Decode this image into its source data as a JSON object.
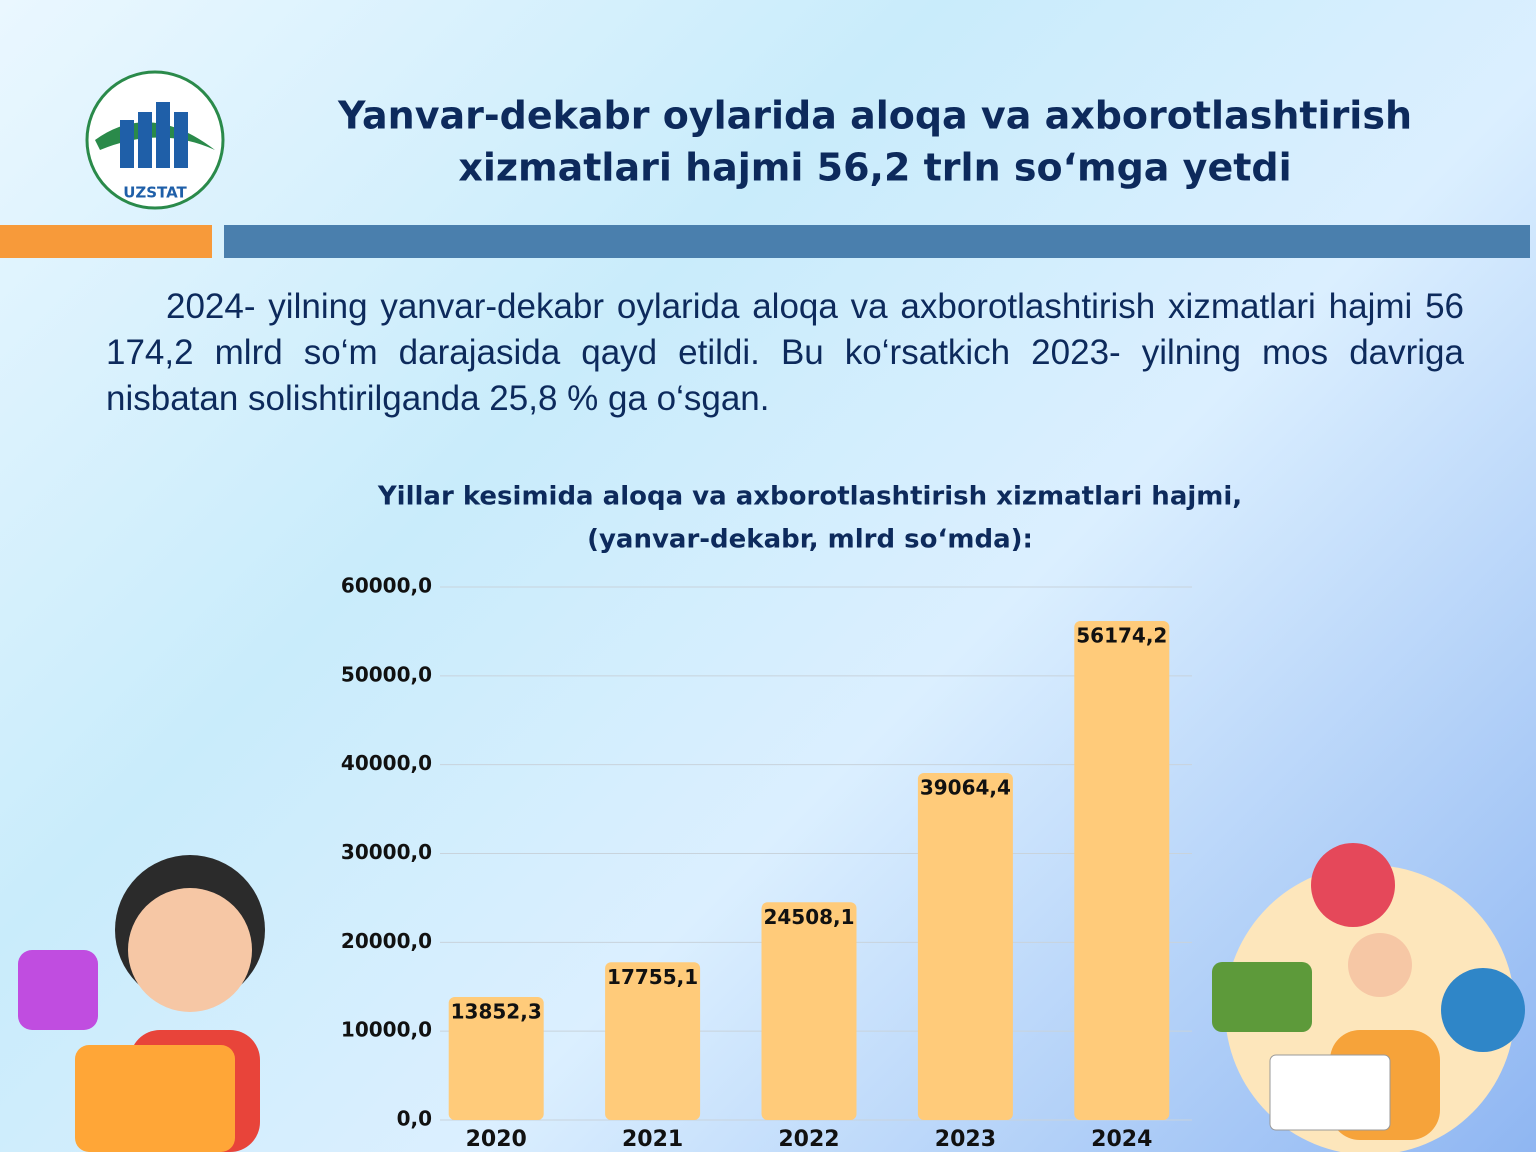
{
  "header": {
    "logo_text": "UZSTAT",
    "title_lines": [
      "Yanvar-dekabr oylarida aloqa va axborotlashtirish",
      "xizmatlari hajmi 56,2 trln so‘mga yetdi"
    ]
  },
  "paragraph": "2024- yilning yanvar-dekabr oylarida aloqa va axborotlashtirish xizmatlari hajmi 56 174,2 mlrd so‘m darajasida qayd etildi. Bu ko‘rsatkich 2023- yilning mos davriga nisbatan solishtirilganda 25,8 % ga o‘sgan.",
  "chart_data": {
    "type": "bar",
    "title": "Yillar kesimida aloqa va axborotlashtirish xizmatlari hajmi,",
    "subtitle": "(yanvar-dekabr, mlrd so‘mda):",
    "categories": [
      "2020",
      "2021",
      "2022",
      "2023",
      "2024"
    ],
    "values": [
      13852.3,
      17755.1,
      24508.1,
      39064.4,
      56174.2
    ],
    "value_labels": [
      "13852,3",
      "17755,1",
      "24508,1",
      "39064,4",
      "56174,2"
    ],
    "color": "#ffcb7a",
    "ylim": [
      0,
      60000
    ],
    "yticks": [
      {
        "value": 0,
        "label": "0,0"
      },
      {
        "value": 10000,
        "label": "10000,0"
      },
      {
        "value": 20000,
        "label": "20000,0"
      },
      {
        "value": 30000,
        "label": "30000,0"
      },
      {
        "value": 40000,
        "label": "40000,0"
      },
      {
        "value": 50000,
        "label": "50000,0"
      },
      {
        "value": 60000,
        "label": "60000,0"
      }
    ],
    "grid": true
  }
}
